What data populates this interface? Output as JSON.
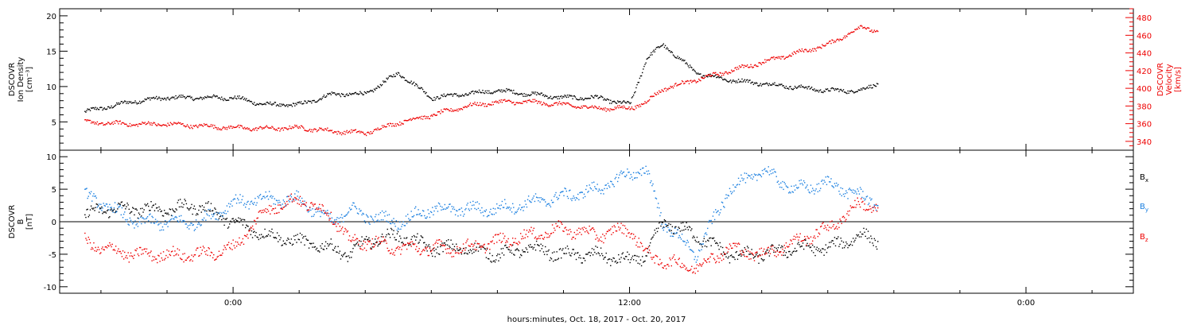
{
  "chart_data": [
    {
      "type": "scatter",
      "panel": "top",
      "ylabel": [
        "DSCOVR",
        "Ion Density",
        "[cm⁻³]"
      ],
      "ylim": [
        1,
        21
      ],
      "yticks": [
        5,
        10,
        15,
        20
      ],
      "y2label": [
        "DSCOVR",
        "Velocity",
        "[km/s]"
      ],
      "y2lim": [
        330,
        490
      ],
      "y2ticks": [
        340,
        360,
        380,
        400,
        420,
        440,
        460,
        480
      ],
      "x_hours": [
        -4.5,
        -3,
        -2,
        -1,
        0,
        1,
        2,
        3,
        4,
        5,
        6,
        7,
        8,
        9,
        10,
        11,
        12,
        12.5,
        13,
        14,
        15,
        16,
        17,
        18,
        19,
        19.5
      ],
      "series": [
        {
          "name": "",
          "color": "#000000",
          "axis": "left",
          "values": [
            6.5,
            8,
            8.5,
            8.5,
            8.5,
            7.5,
            7.5,
            9,
            9,
            12,
            8.5,
            9,
            9.5,
            9,
            8.5,
            8.5,
            7.5,
            14,
            16,
            12,
            11,
            10.5,
            10,
            9.5,
            9.5,
            10.5
          ]
        },
        {
          "name": "",
          "color": "#ee0000",
          "axis": "right",
          "values": [
            362,
            360,
            360,
            358,
            356,
            355,
            356,
            352,
            350,
            362,
            370,
            380,
            385,
            385,
            382,
            378,
            378,
            385,
            400,
            410,
            420,
            430,
            440,
            450,
            470,
            465
          ]
        }
      ]
    },
    {
      "type": "scatter",
      "panel": "bottom",
      "ylabel": [
        "DSCOVR",
        "B",
        "[nT]"
      ],
      "ylim": [
        -11,
        11
      ],
      "yticks": [
        -10,
        -5,
        0,
        5,
        10
      ],
      "x_hours": [
        -4.5,
        -4,
        -3,
        -2,
        -1,
        0,
        1,
        2,
        3,
        3.5,
        4,
        5,
        6,
        7,
        8,
        9,
        10,
        11,
        12,
        12.5,
        13,
        14,
        15,
        16,
        17,
        18,
        19,
        19.5
      ],
      "series": [
        {
          "name": "Bx",
          "color": "#000000",
          "values": [
            1,
            2,
            2,
            2,
            2.5,
            0,
            -2,
            -3,
            -4,
            -5,
            -3,
            -2,
            -4,
            -4,
            -5,
            -4,
            -5,
            -5,
            -6,
            -5,
            0,
            -2,
            -5,
            -5,
            -4,
            -4,
            -2,
            -3
          ]
        },
        {
          "name": "By",
          "color": "#1a7fe0",
          "values": [
            4,
            3,
            0,
            0,
            0,
            3,
            3.5,
            3.5,
            0,
            2,
            1,
            0,
            2,
            2,
            2,
            3,
            4,
            5,
            7.5,
            8,
            0,
            -5,
            5,
            8,
            5,
            6,
            4,
            3
          ]
        },
        {
          "name": "Bz",
          "color": "#ee0000",
          "values": [
            -3,
            -4,
            -5,
            -5,
            -5,
            -4,
            2,
            3.5,
            1,
            -3,
            -3,
            -4,
            -4,
            -4,
            -3,
            -2,
            -1,
            -2,
            -1,
            -5,
            -6,
            -7,
            -4,
            -5,
            -3,
            -1,
            3,
            2
          ]
        }
      ],
      "legend": [
        "Bx",
        "By",
        "Bz"
      ],
      "zero_line": true
    }
  ],
  "xaxis": {
    "label": "hours:minutes, Oct. 18, 2017 - Oct. 20, 2017",
    "ticks": [
      {
        "hour": 0,
        "label": "0:00"
      },
      {
        "hour": 12,
        "label": "12:00"
      },
      {
        "hour": 24,
        "label": "0:00"
      }
    ],
    "minor_every_hours": 2,
    "range_hours": [
      -5.25,
      27.25
    ]
  },
  "legend_labels": {
    "bx": "B",
    "bx_sub": "x",
    "by": "B",
    "by_sub": "y",
    "bz": "B",
    "bz_sub": "z"
  },
  "colors": {
    "black": "#000000",
    "red": "#ee0000",
    "blue": "#1a7fe0"
  }
}
